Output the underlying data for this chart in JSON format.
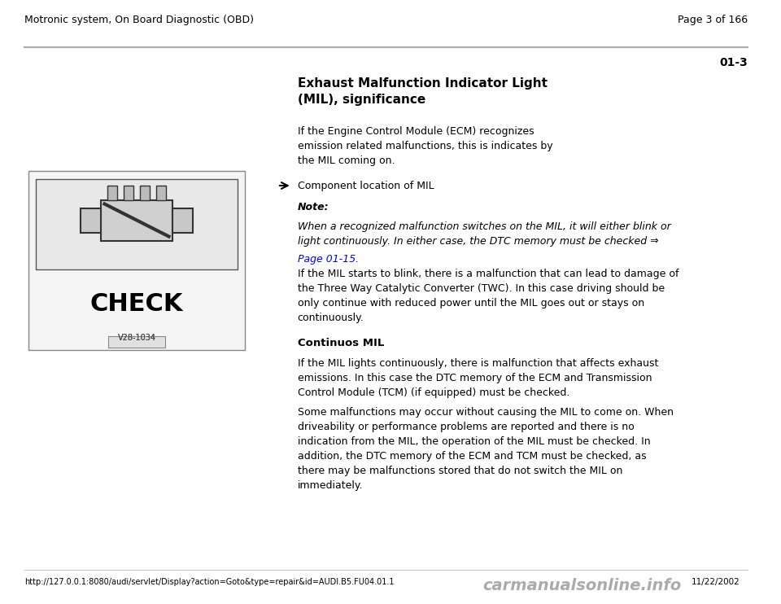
{
  "bg_color": "#ffffff",
  "header_left": "Motronic system, On Board Diagnostic (OBD)",
  "header_right": "Page 3 of 166",
  "page_code": "01-3",
  "section_title": "Exhaust Malfunction Indicator Light\n(MIL), significance",
  "intro_text": "If the Engine Control Module (ECM) recognizes\nemission related malfunctions, this is indicates by\nthe MIL coming on.",
  "component_label": "Component location of MIL",
  "note_label": "Note:",
  "note_italic": "When a recognized malfunction switches on the MIL, it will either blink or\nlight continuously. In either case, the DTC memory must be checked ⇒\n",
  "note_link": "Page 01-15",
  "note_link_suffix": " .",
  "blink_text": "If the MIL starts to blink, there is a malfunction that can lead to damage of\nthe Three Way Catalytic Converter (TWC). In this case driving should be\nonly continue with reduced power until the MIL goes out or stays on\ncontinuously.",
  "continuos_label": "Continuos MIL",
  "continuos_text": "If the MIL lights continuously, there is malfunction that affects exhaust\nemissions. In this case the DTC memory of the ECM and Transmission\nControl Module (TCM) (if equipped) must be checked.",
  "some_text": "Some malfunctions may occur without causing the MIL to come on. When\ndriveability or performance problems are reported and there is no\nindication from the MIL, the operation of the MIL must be checked. In\naddition, the DTC memory of the ECM and TCM must be checked, as\nthere may be malfunctions stored that do not switch the MIL on\nimmediately.",
  "footer_url": "http://127.0.0.1:8080/audi/servlet/Display?action=Goto&type=repair&id=AUDI.B5.FU04.01.1",
  "footer_date": "11/22/2002",
  "footer_watermark": "carmanualsonline.info",
  "image_label": "V28-1034",
  "line_color": "#aaaaaa",
  "link_color": "#0000ff",
  "text_color": "#000000",
  "header_font_size": 9,
  "body_font_size": 9,
  "title_font_size": 11
}
